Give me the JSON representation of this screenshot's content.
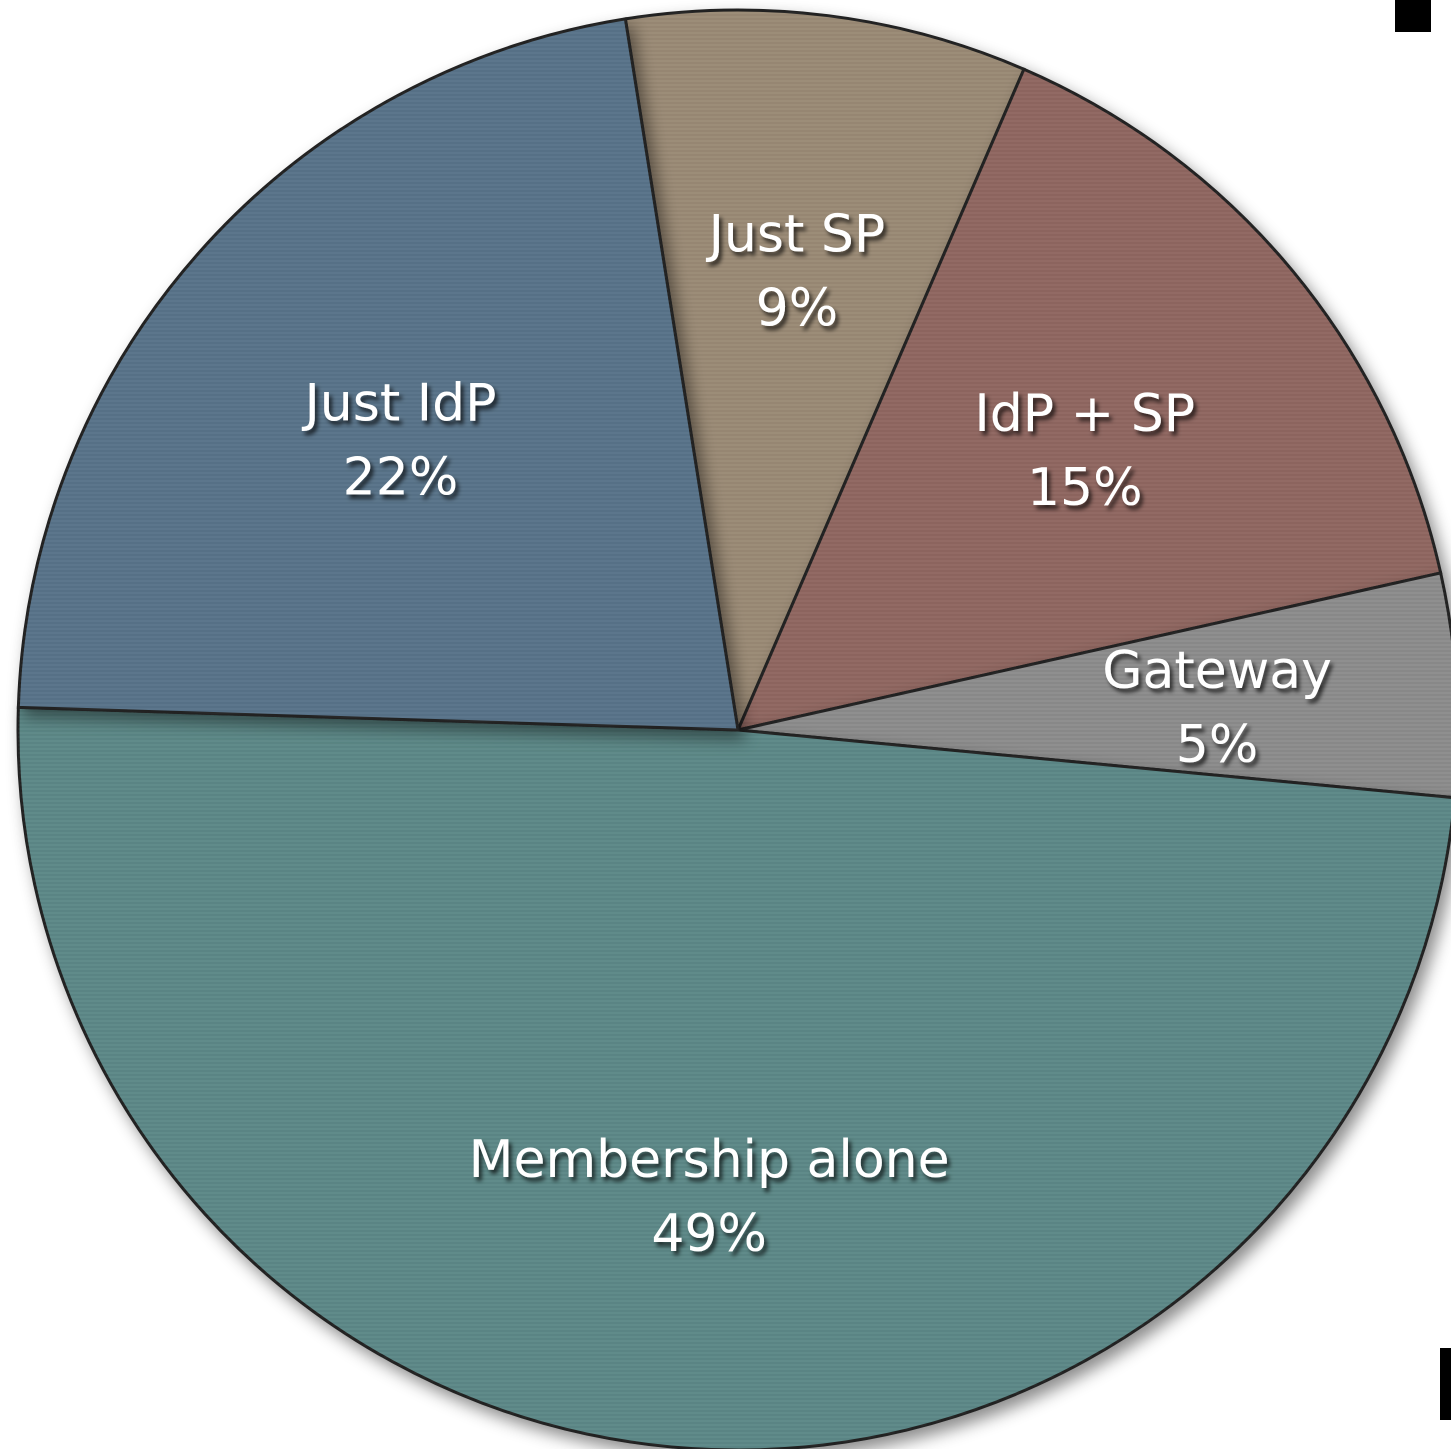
{
  "chart_data": {
    "type": "pie",
    "start_angle_deg": -99,
    "direction": "clockwise",
    "slices": [
      {
        "label": "Just SP",
        "value": 9,
        "display": "9%",
        "color": "#9a8a74"
      },
      {
        "label": "IdP + SP",
        "value": 15,
        "display": "15%",
        "color": "#8f6660"
      },
      {
        "label": "Gateway",
        "value": 5,
        "display": "5%",
        "color": "#8c8c8c"
      },
      {
        "label": "Membership alone",
        "value": 49,
        "display": "49%",
        "color": "#5b8887"
      },
      {
        "label": "Just IdP",
        "value": 22,
        "display": "22%",
        "color": "#587389"
      }
    ]
  }
}
